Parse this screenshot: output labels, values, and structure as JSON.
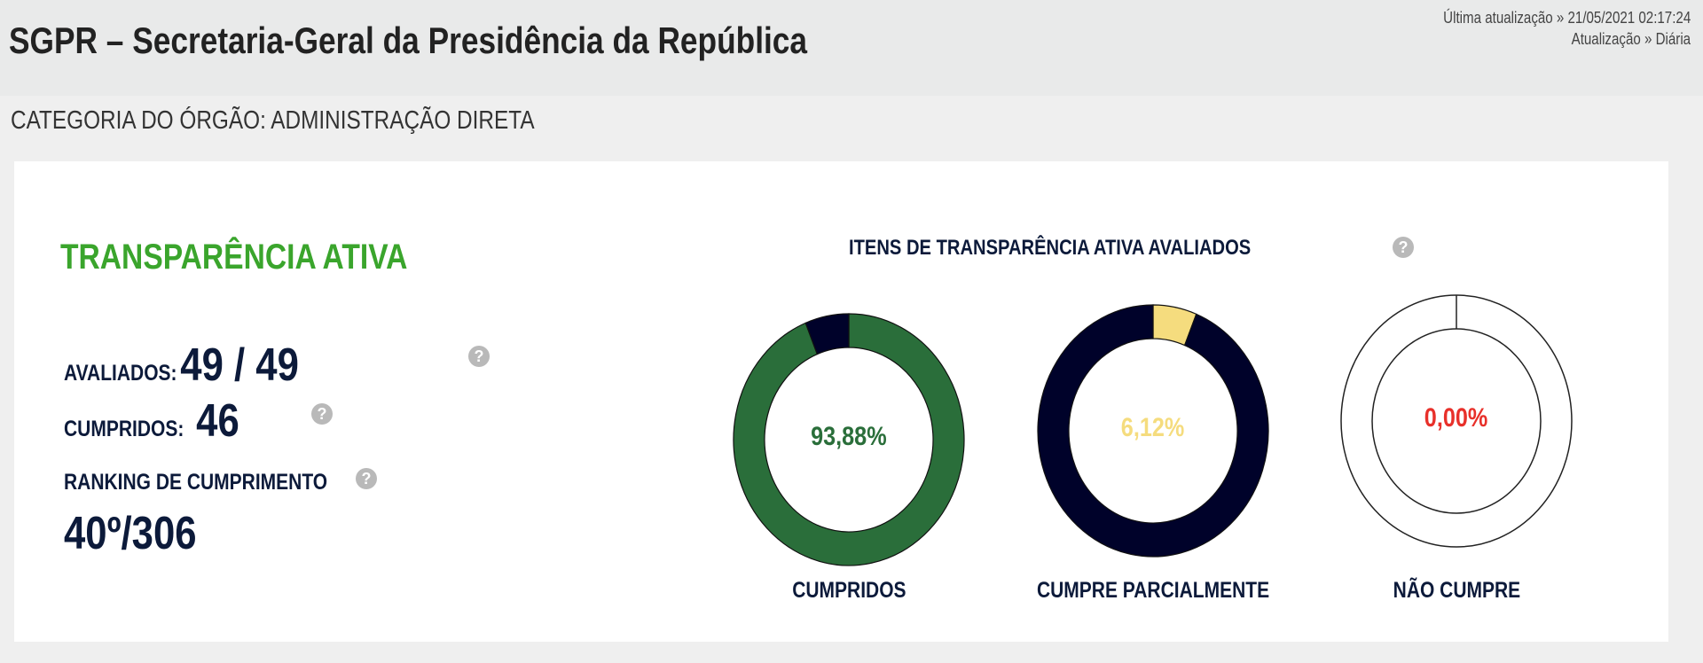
{
  "header": {
    "title": "SGPR – Secretaria-Geral da Presidência da República",
    "last_update_label": "Última atualização » 21/05/2021 02:17:24",
    "frequency_label": "Atualização » Diária"
  },
  "category": "CATEGORIA DO ÓRGÃO: ADMINISTRAÇÃO DIRETA",
  "summary": {
    "section_title": "TRANSPARÊNCIA  ATIVA",
    "evaluated_label": "AVALIADOS:",
    "evaluated_value": "49 / 49",
    "fulfilled_label": "CUMPRIDOS:",
    "fulfilled_value": "46",
    "ranking_label": "RANKING DE CUMPRIMENTO",
    "ranking_value": "40º/306",
    "help_glyph": "?"
  },
  "colors": {
    "green": "#2a6e3a",
    "navy": "#00022a",
    "yellow": "#f5dc7e",
    "red": "#e8302a",
    "title_green": "#3aa52c",
    "help_gray": "#b9b9b9"
  },
  "chart_data": [
    {
      "type": "pie",
      "title": "ITENS DE TRANSPARÊNCIA ATIVA AVALIADOS",
      "label": "CUMPRIDOS",
      "center_text": "93,88%",
      "value": 93.88,
      "colors": [
        "#2a6e3a",
        "#00022a"
      ],
      "text_color": "#2a6e3a"
    },
    {
      "type": "pie",
      "label": "CUMPRE PARCIALMENTE",
      "center_text": "6,12%",
      "value": 6.12,
      "colors": [
        "#f5dc7e",
        "#00022a"
      ],
      "text_color": "#f5dc7e"
    },
    {
      "type": "pie",
      "label": "NÃO CUMPRE",
      "center_text": "0,00%",
      "value": 0.0,
      "colors": [
        "#e8302a",
        "#ffffff"
      ],
      "text_color": "#e8302a"
    }
  ]
}
